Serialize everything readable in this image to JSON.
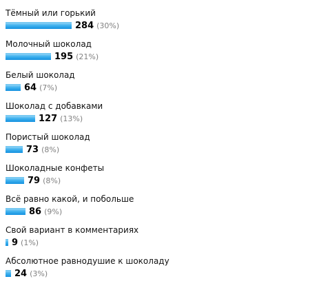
{
  "poll": {
    "options": [
      {
        "label": "Тёмный или горький",
        "count": "284",
        "percent": "(30%)",
        "value": 284
      },
      {
        "label": "Молочный шоколад",
        "count": "195",
        "percent": "(21%)",
        "value": 195
      },
      {
        "label": "Белый шоколад",
        "count": "64",
        "percent": "(7%)",
        "value": 64
      },
      {
        "label": "Шоколад с добавками",
        "count": "127",
        "percent": "(13%)",
        "value": 127
      },
      {
        "label": "Пористый шоколад",
        "count": "73",
        "percent": "(8%)",
        "value": 73
      },
      {
        "label": "Шоколадные конфеты",
        "count": "79",
        "percent": "(8%)",
        "value": 79
      },
      {
        "label": "Всё равно какой, и побольше",
        "count": "86",
        "percent": "(9%)",
        "value": 86
      },
      {
        "label": "Свой вариант в комментариях",
        "count": "9",
        "percent": "(1%)",
        "value": 9
      },
      {
        "label": "Абсолютное равнодушие к шоколаду",
        "count": "24",
        "percent": "(3%)",
        "value": 24
      }
    ]
  },
  "colors": {
    "bar_light": "#8fd3f6",
    "bar_dark": "#1591df",
    "percent_text": "#808080"
  }
}
